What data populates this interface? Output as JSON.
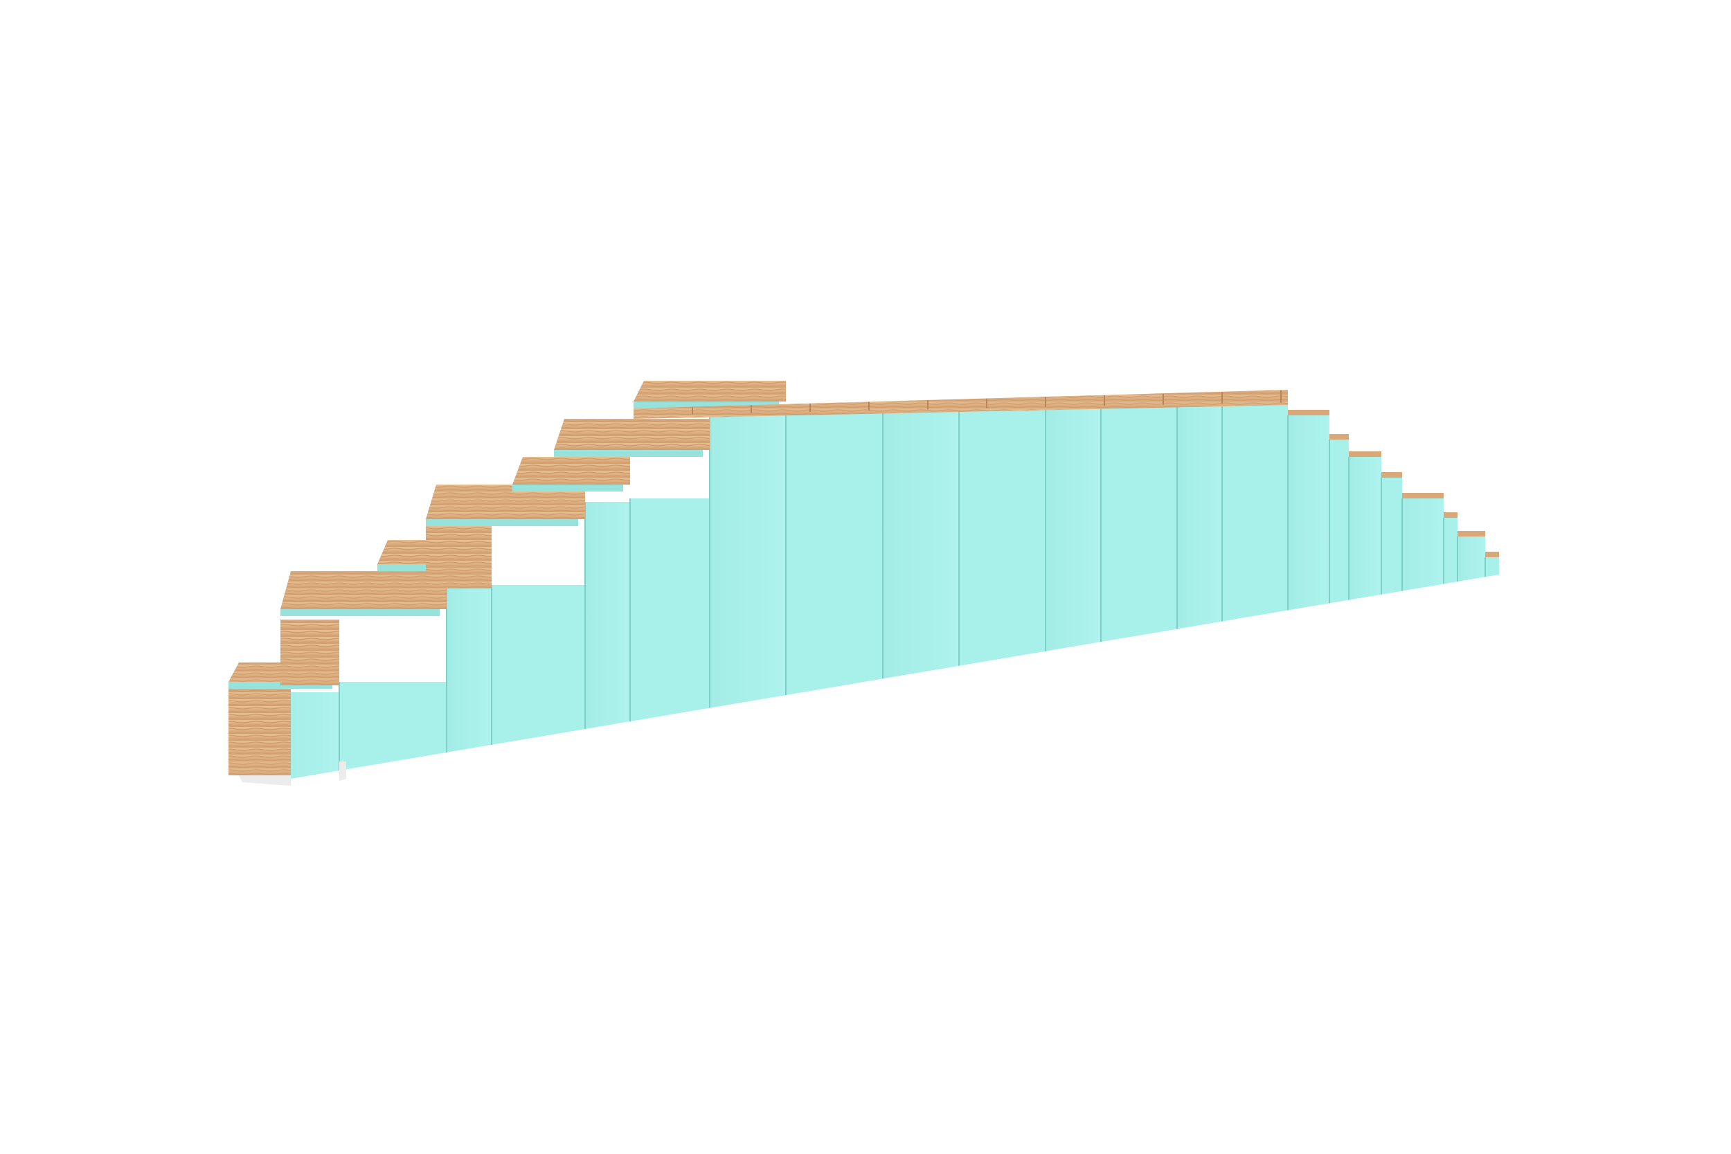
{
  "scene": {
    "subject": "stepped-bench-render",
    "background_color": "#ffffff",
    "panel_color": "#a8f0ea",
    "panel_shadow_color": "#98e2dc",
    "seam_color": "#7fcfc8",
    "wood_color": "#d9a878",
    "wood_light_color": "#e6bb8c",
    "wood_grain_color": "#b98558",
    "base_color": "#ececec"
  }
}
